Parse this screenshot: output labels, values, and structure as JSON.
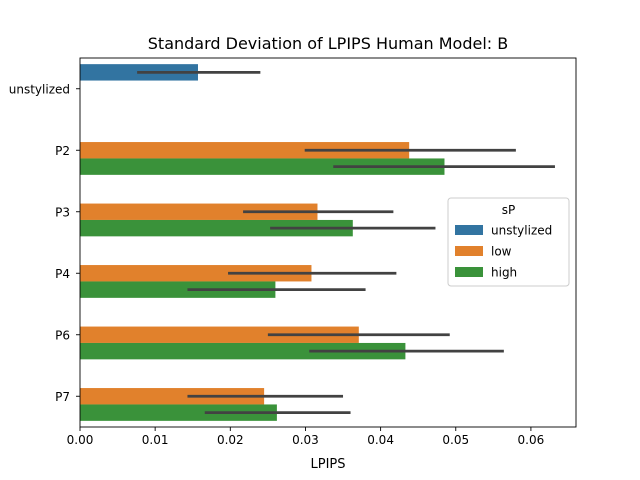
{
  "chart_data": {
    "type": "bar",
    "orientation": "horizontal",
    "title": "Standard Deviation of LPIPS Human Model: B",
    "xlabel": "LPIPS",
    "ylabel": "",
    "xlim": [
      0,
      0.066
    ],
    "xticks": [
      "0.00",
      "0.01",
      "0.02",
      "0.03",
      "0.04",
      "0.05",
      "0.06"
    ],
    "categories": [
      "unstylized",
      "P2",
      "P3",
      "P4",
      "P6",
      "P7"
    ],
    "legend": {
      "title": "sP",
      "placement": "center-right"
    },
    "series": [
      {
        "name": "unstylized",
        "color": "#3274a1",
        "values": [
          0.0157,
          null,
          null,
          null,
          null,
          null
        ],
        "ci_low": [
          0.0076,
          null,
          null,
          null,
          null,
          null
        ],
        "ci_high": [
          0.024,
          null,
          null,
          null,
          null,
          null
        ]
      },
      {
        "name": "low",
        "color": "#e1812c",
        "values": [
          null,
          0.0438,
          0.0316,
          0.0308,
          0.0371,
          0.0245
        ],
        "ci_low": [
          null,
          0.0299,
          0.0217,
          0.0197,
          0.025,
          0.0143
        ],
        "ci_high": [
          null,
          0.058,
          0.0417,
          0.0421,
          0.0492,
          0.035
        ]
      },
      {
        "name": "high",
        "color": "#3a923a",
        "values": [
          null,
          0.0485,
          0.0363,
          0.026,
          0.0433,
          0.0262
        ],
        "ci_low": [
          null,
          0.0337,
          0.0253,
          0.0143,
          0.0305,
          0.0166
        ],
        "ci_high": [
          null,
          0.0632,
          0.0473,
          0.038,
          0.0564,
          0.036
        ]
      }
    ],
    "grid": false
  }
}
